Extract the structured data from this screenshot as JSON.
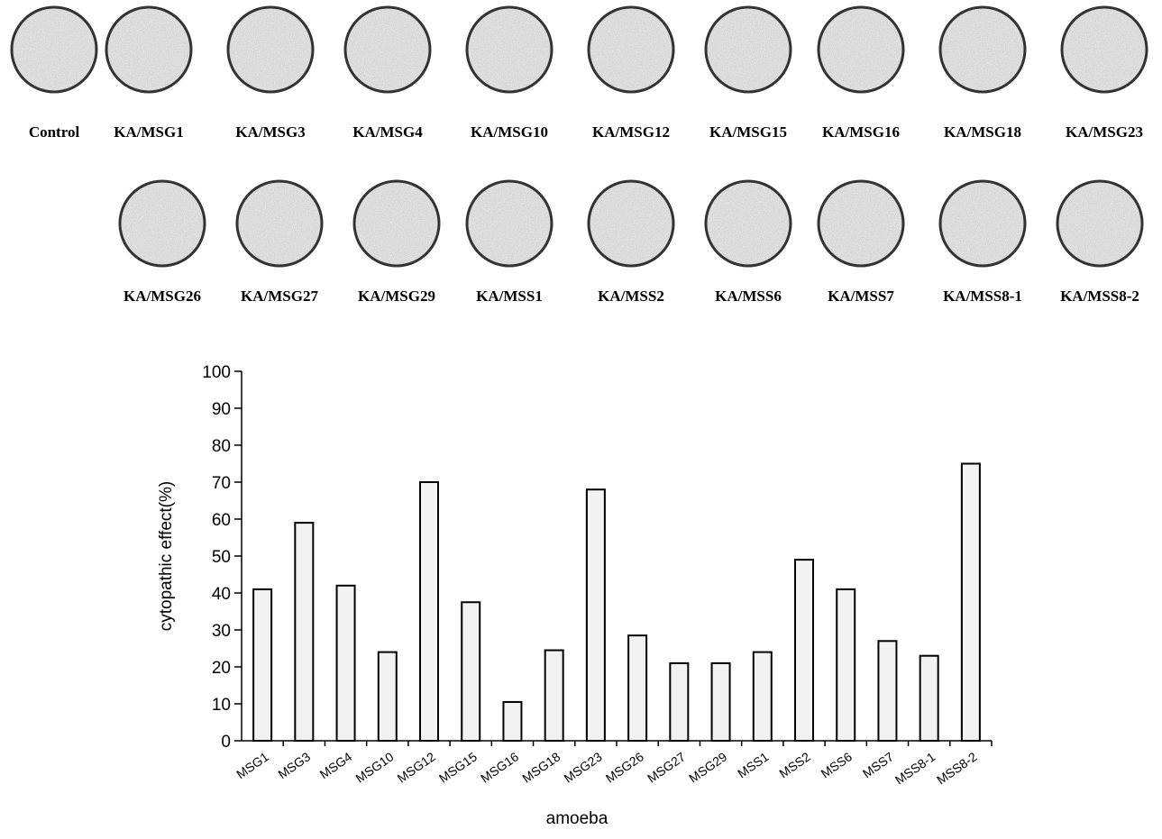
{
  "wells": {
    "row1": [
      "Control",
      "KA/MSG1",
      "KA/MSG3",
      "KA/MSG4",
      "KA/MSG10",
      "KA/MSG12",
      "KA/MSG15",
      "KA/MSG16",
      "KA/MSG18",
      "KA/MSG23"
    ],
    "row2": [
      "KA/MSG26",
      "KA/MSG27",
      "KA/MSG29",
      "KA/MSS1",
      "KA/MSS2",
      "KA/MSS6",
      "KA/MSS7",
      "KA/MSS8-1",
      "KA/MSS8-2"
    ]
  },
  "chart_data": {
    "type": "bar",
    "x_label": "amoeba",
    "y_label": "cytopathic effect(%)",
    "categories": [
      "MSG1",
      "MSG3",
      "MSG4",
      "MSG10",
      "MSG12",
      "MSG15",
      "MSG16",
      "MSG18",
      "MSG23",
      "MSG26",
      "MSG27",
      "MSG29",
      "MSS1",
      "MSS2",
      "MSS6",
      "MSS7",
      "MSS8-1",
      "MSS8-2"
    ],
    "values": [
      41,
      59,
      42,
      24,
      70,
      37.5,
      10.5,
      24.5,
      68,
      28.5,
      21,
      21,
      24,
      49,
      41,
      27,
      23,
      75
    ],
    "color": "#f2f2f2",
    "ylim": [
      0,
      100
    ],
    "yticks": [
      0,
      10,
      20,
      30,
      40,
      50,
      60,
      70,
      80,
      90,
      100
    ]
  }
}
